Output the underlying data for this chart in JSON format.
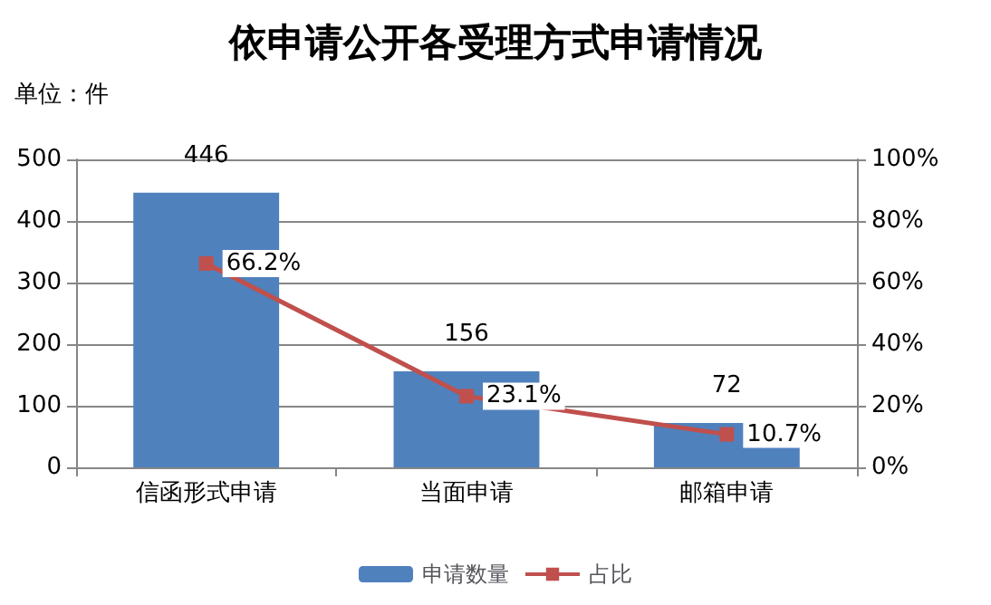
{
  "chart_data": {
    "type": "bar",
    "title": "依申请公开各受理方式申请情况",
    "annotations": [
      "单位：件"
    ],
    "categories": [
      "信函形式申请",
      "当面申请",
      "邮箱申请"
    ],
    "series": [
      {
        "name": "申请数量",
        "color": "#4f81bd",
        "values": [
          446,
          156,
          72
        ],
        "value_labels": [
          "446",
          "156",
          "72"
        ]
      },
      {
        "name": "占比",
        "type": "line",
        "axis": "y2",
        "color": "#c0504d",
        "values": [
          66.2,
          23.1,
          10.7
        ],
        "value_labels": [
          "66.2%",
          "23.1%",
          "10.7%"
        ],
        "marker": "square",
        "line_style": "solid"
      }
    ],
    "ylim": [
      0,
      500
    ],
    "yticks": [
      0,
      100,
      200,
      300,
      400,
      500
    ],
    "y2lim": [
      0,
      100
    ],
    "y2ticks": [
      {
        "value": 0,
        "label": "0%"
      },
      {
        "value": 20,
        "label": "20%"
      },
      {
        "value": 40,
        "label": "40%"
      },
      {
        "value": 60,
        "label": "60%"
      },
      {
        "value": 80,
        "label": "80%"
      },
      {
        "value": 100,
        "label": "100%"
      }
    ],
    "grid": "y",
    "legend": "bottom"
  }
}
